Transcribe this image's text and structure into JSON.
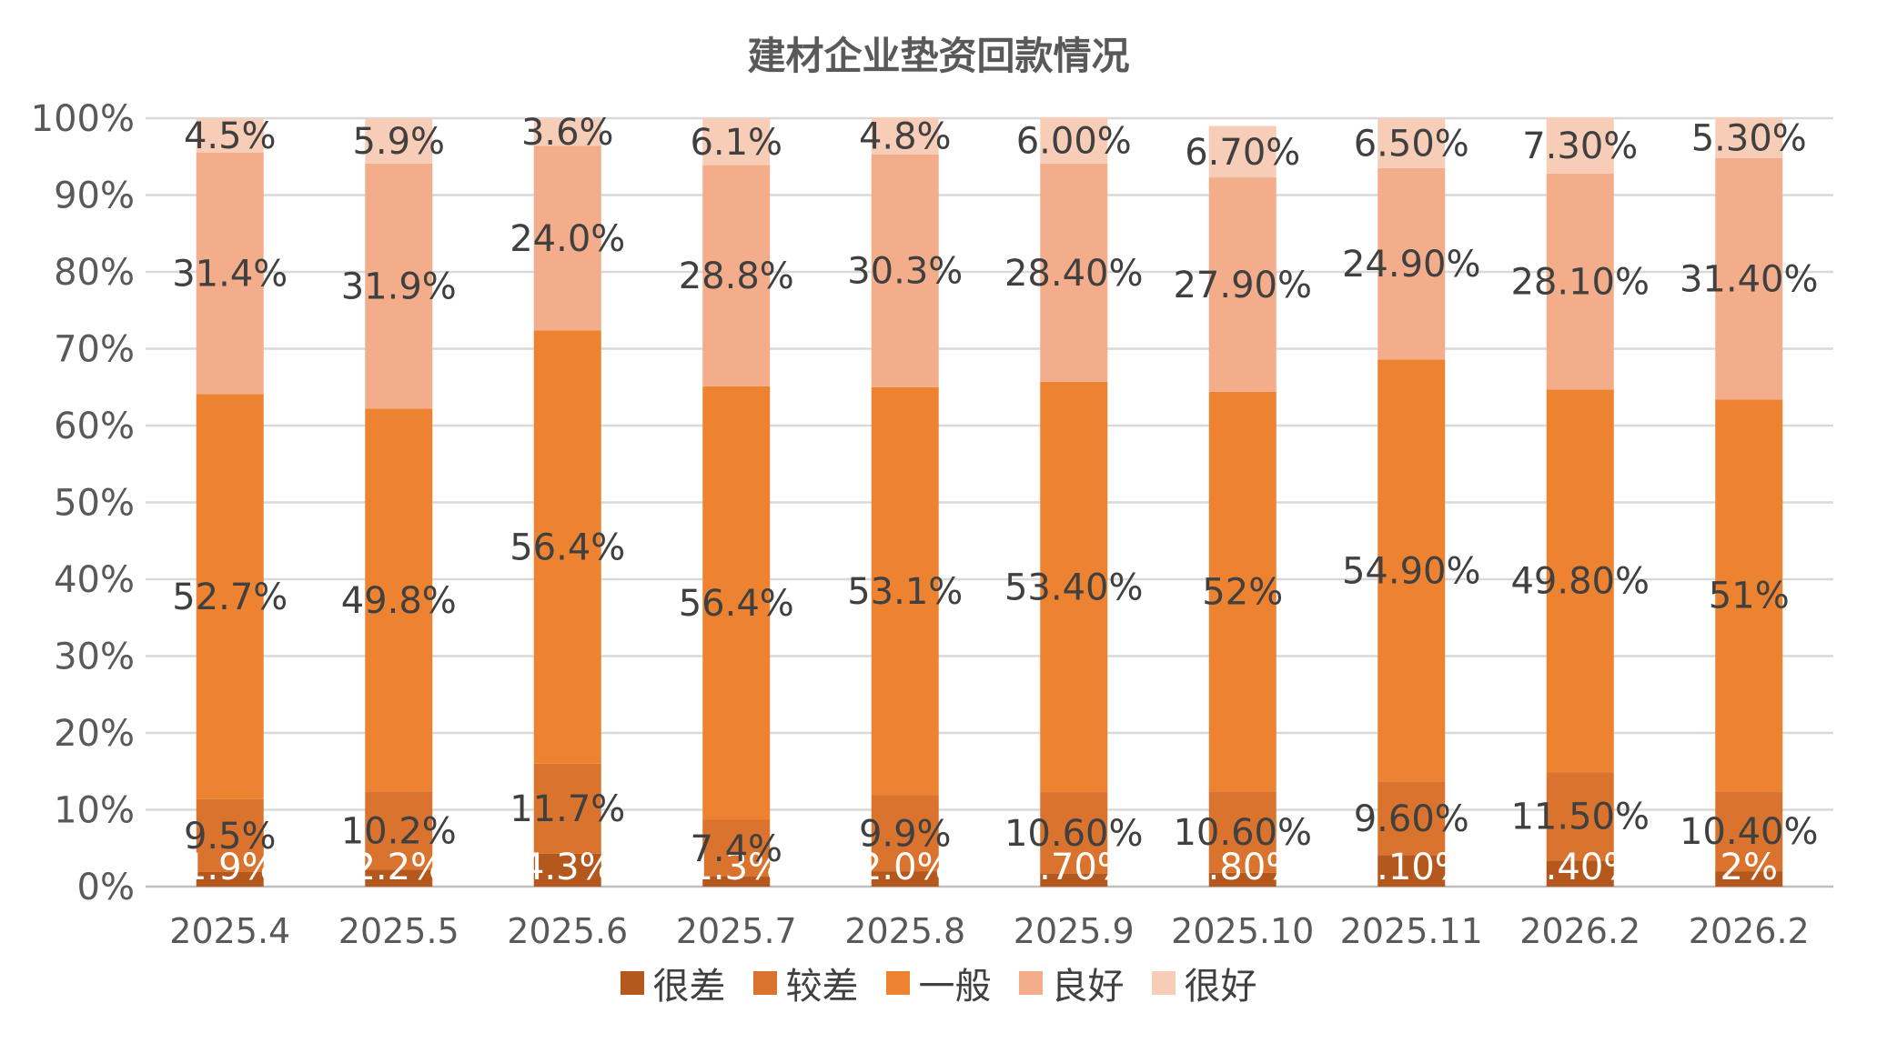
{
  "chart_data": {
    "type": "bar",
    "stacked": true,
    "title": "建材企业垫资回款情况",
    "xlabel": "",
    "ylabel": "",
    "ylim": [
      0,
      100
    ],
    "y_ticks": [
      "0%",
      "10%",
      "20%",
      "30%",
      "40%",
      "50%",
      "60%",
      "70%",
      "80%",
      "90%",
      "100%"
    ],
    "categories": [
      "2025.4",
      "2025.5",
      "2025.6",
      "2025.7",
      "2025.8",
      "2025.9",
      "2025.10",
      "2025.11",
      "2026.2",
      "2026.2"
    ],
    "grid": true,
    "legend_position": "bottom",
    "series": [
      {
        "name": "很差",
        "color": "#B5581D",
        "values": [
          1.9,
          2.2,
          4.3,
          1.3,
          2.0,
          1.7,
          1.8,
          4.1,
          3.4,
          2
        ],
        "labels": [
          "1.9%",
          "2.2%",
          "4.3%",
          "1.3%",
          "2.0%",
          "1.70%",
          "1.80%",
          "4.10%",
          "3.40%",
          "2%"
        ]
      },
      {
        "name": "较差",
        "color": "#D9732E",
        "values": [
          9.5,
          10.2,
          11.7,
          7.4,
          9.9,
          10.6,
          10.6,
          9.6,
          11.5,
          10.4
        ],
        "labels": [
          "9.5%",
          "10.2%",
          "11.7%",
          "7.4%",
          "9.9%",
          "10.60%",
          "10.60%",
          "9.60%",
          "11.50%",
          "10.40%"
        ]
      },
      {
        "name": "一般",
        "color": "#ED8331",
        "values": [
          52.7,
          49.8,
          56.4,
          56.4,
          53.1,
          53.4,
          52,
          54.9,
          49.8,
          51
        ],
        "labels": [
          "52.7%",
          "49.8%",
          "56.4%",
          "56.4%",
          "53.1%",
          "53.40%",
          "52%",
          "54.90%",
          "49.80%",
          "51%"
        ]
      },
      {
        "name": "良好",
        "color": "#F3AD8A",
        "values": [
          31.4,
          31.9,
          24.0,
          28.8,
          30.3,
          28.4,
          27.9,
          24.9,
          28.1,
          31.4
        ],
        "labels": [
          "31.4%",
          "31.9%",
          "24.0%",
          "28.8%",
          "30.3%",
          "28.40%",
          "27.90%",
          "24.90%",
          "28.10%",
          "31.40%"
        ]
      },
      {
        "name": "很好",
        "color": "#F8CDB8",
        "values": [
          4.5,
          5.9,
          3.6,
          6.1,
          4.8,
          6.0,
          6.7,
          6.5,
          7.3,
          5.3
        ],
        "labels": [
          "4.5%",
          "5.9%",
          "3.6%",
          "6.1%",
          "4.8%",
          "6.00%",
          "6.70%",
          "6.50%",
          "7.30%",
          "5.30%"
        ]
      }
    ]
  }
}
